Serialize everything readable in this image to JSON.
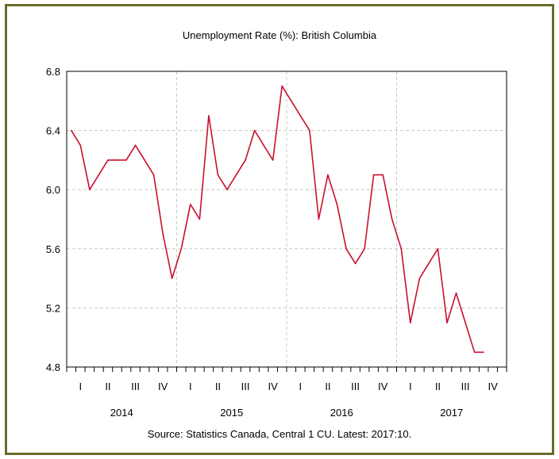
{
  "chart_data": {
    "type": "line",
    "title": "Unemployment Rate (%): British Columbia",
    "source_note": "Source: Statistics Canada, Central 1 CU. Latest: 2017:10.",
    "xlabel": "",
    "ylabel": "",
    "ylim": [
      4.8,
      6.8
    ],
    "yticks": [
      "4.8",
      "5.2",
      "5.6",
      "6.0",
      "6.4",
      "6.8"
    ],
    "grid": true,
    "years": [
      "2014",
      "2015",
      "2016",
      "2017"
    ],
    "quarters": [
      "I",
      "II",
      "III",
      "IV"
    ],
    "x_start": "2014-01",
    "x_end": "2017-10",
    "series": [
      {
        "color": "#c8102e",
        "values": [
          6.4,
          6.3,
          6.0,
          6.1,
          6.2,
          6.2,
          6.2,
          6.3,
          6.2,
          6.1,
          5.7,
          5.4,
          5.6,
          5.9,
          5.8,
          6.5,
          6.1,
          6.0,
          6.1,
          6.2,
          6.4,
          6.3,
          6.2,
          6.7,
          6.6,
          6.5,
          6.4,
          5.8,
          6.1,
          5.9,
          5.6,
          5.5,
          5.6,
          6.1,
          6.1,
          5.8,
          5.6,
          5.1,
          5.4,
          5.5,
          5.6,
          5.1,
          5.3,
          5.1,
          4.9,
          4.9
        ]
      }
    ]
  }
}
